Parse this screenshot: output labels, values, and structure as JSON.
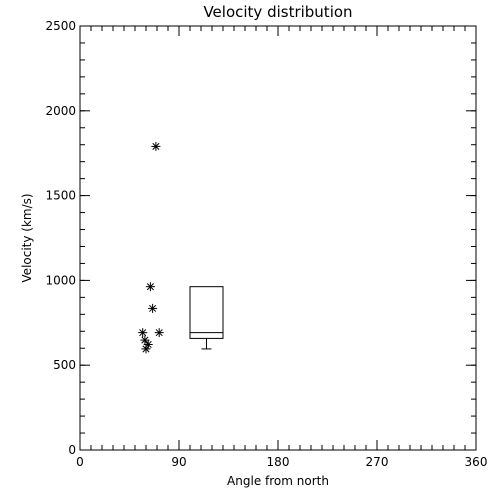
{
  "chart_data": {
    "type": "scatter",
    "title": "Velocity distribution",
    "xlabel": "Angle from north",
    "ylabel": "Velocity (km/s)",
    "xlim": [
      0,
      360
    ],
    "ylim": [
      0,
      2500
    ],
    "x_ticks": [
      0,
      90,
      180,
      270,
      360
    ],
    "y_ticks": [
      0,
      500,
      1000,
      1500,
      2000,
      2500
    ],
    "x_minor_step": 10,
    "y_minor_step": 100,
    "grid": false,
    "marker": "asterisk",
    "points": [
      {
        "x": 69,
        "y": 1790
      },
      {
        "x": 64,
        "y": 963
      },
      {
        "x": 66,
        "y": 835
      },
      {
        "x": 57,
        "y": 692
      },
      {
        "x": 72,
        "y": 692
      },
      {
        "x": 59,
        "y": 648
      },
      {
        "x": 62,
        "y": 622
      },
      {
        "x": 60,
        "y": 596
      }
    ],
    "boxplot": {
      "x_left": 100,
      "x_right": 130,
      "min": 596,
      "q1": 658,
      "median": 692,
      "q3": 963,
      "max": 963
    }
  }
}
